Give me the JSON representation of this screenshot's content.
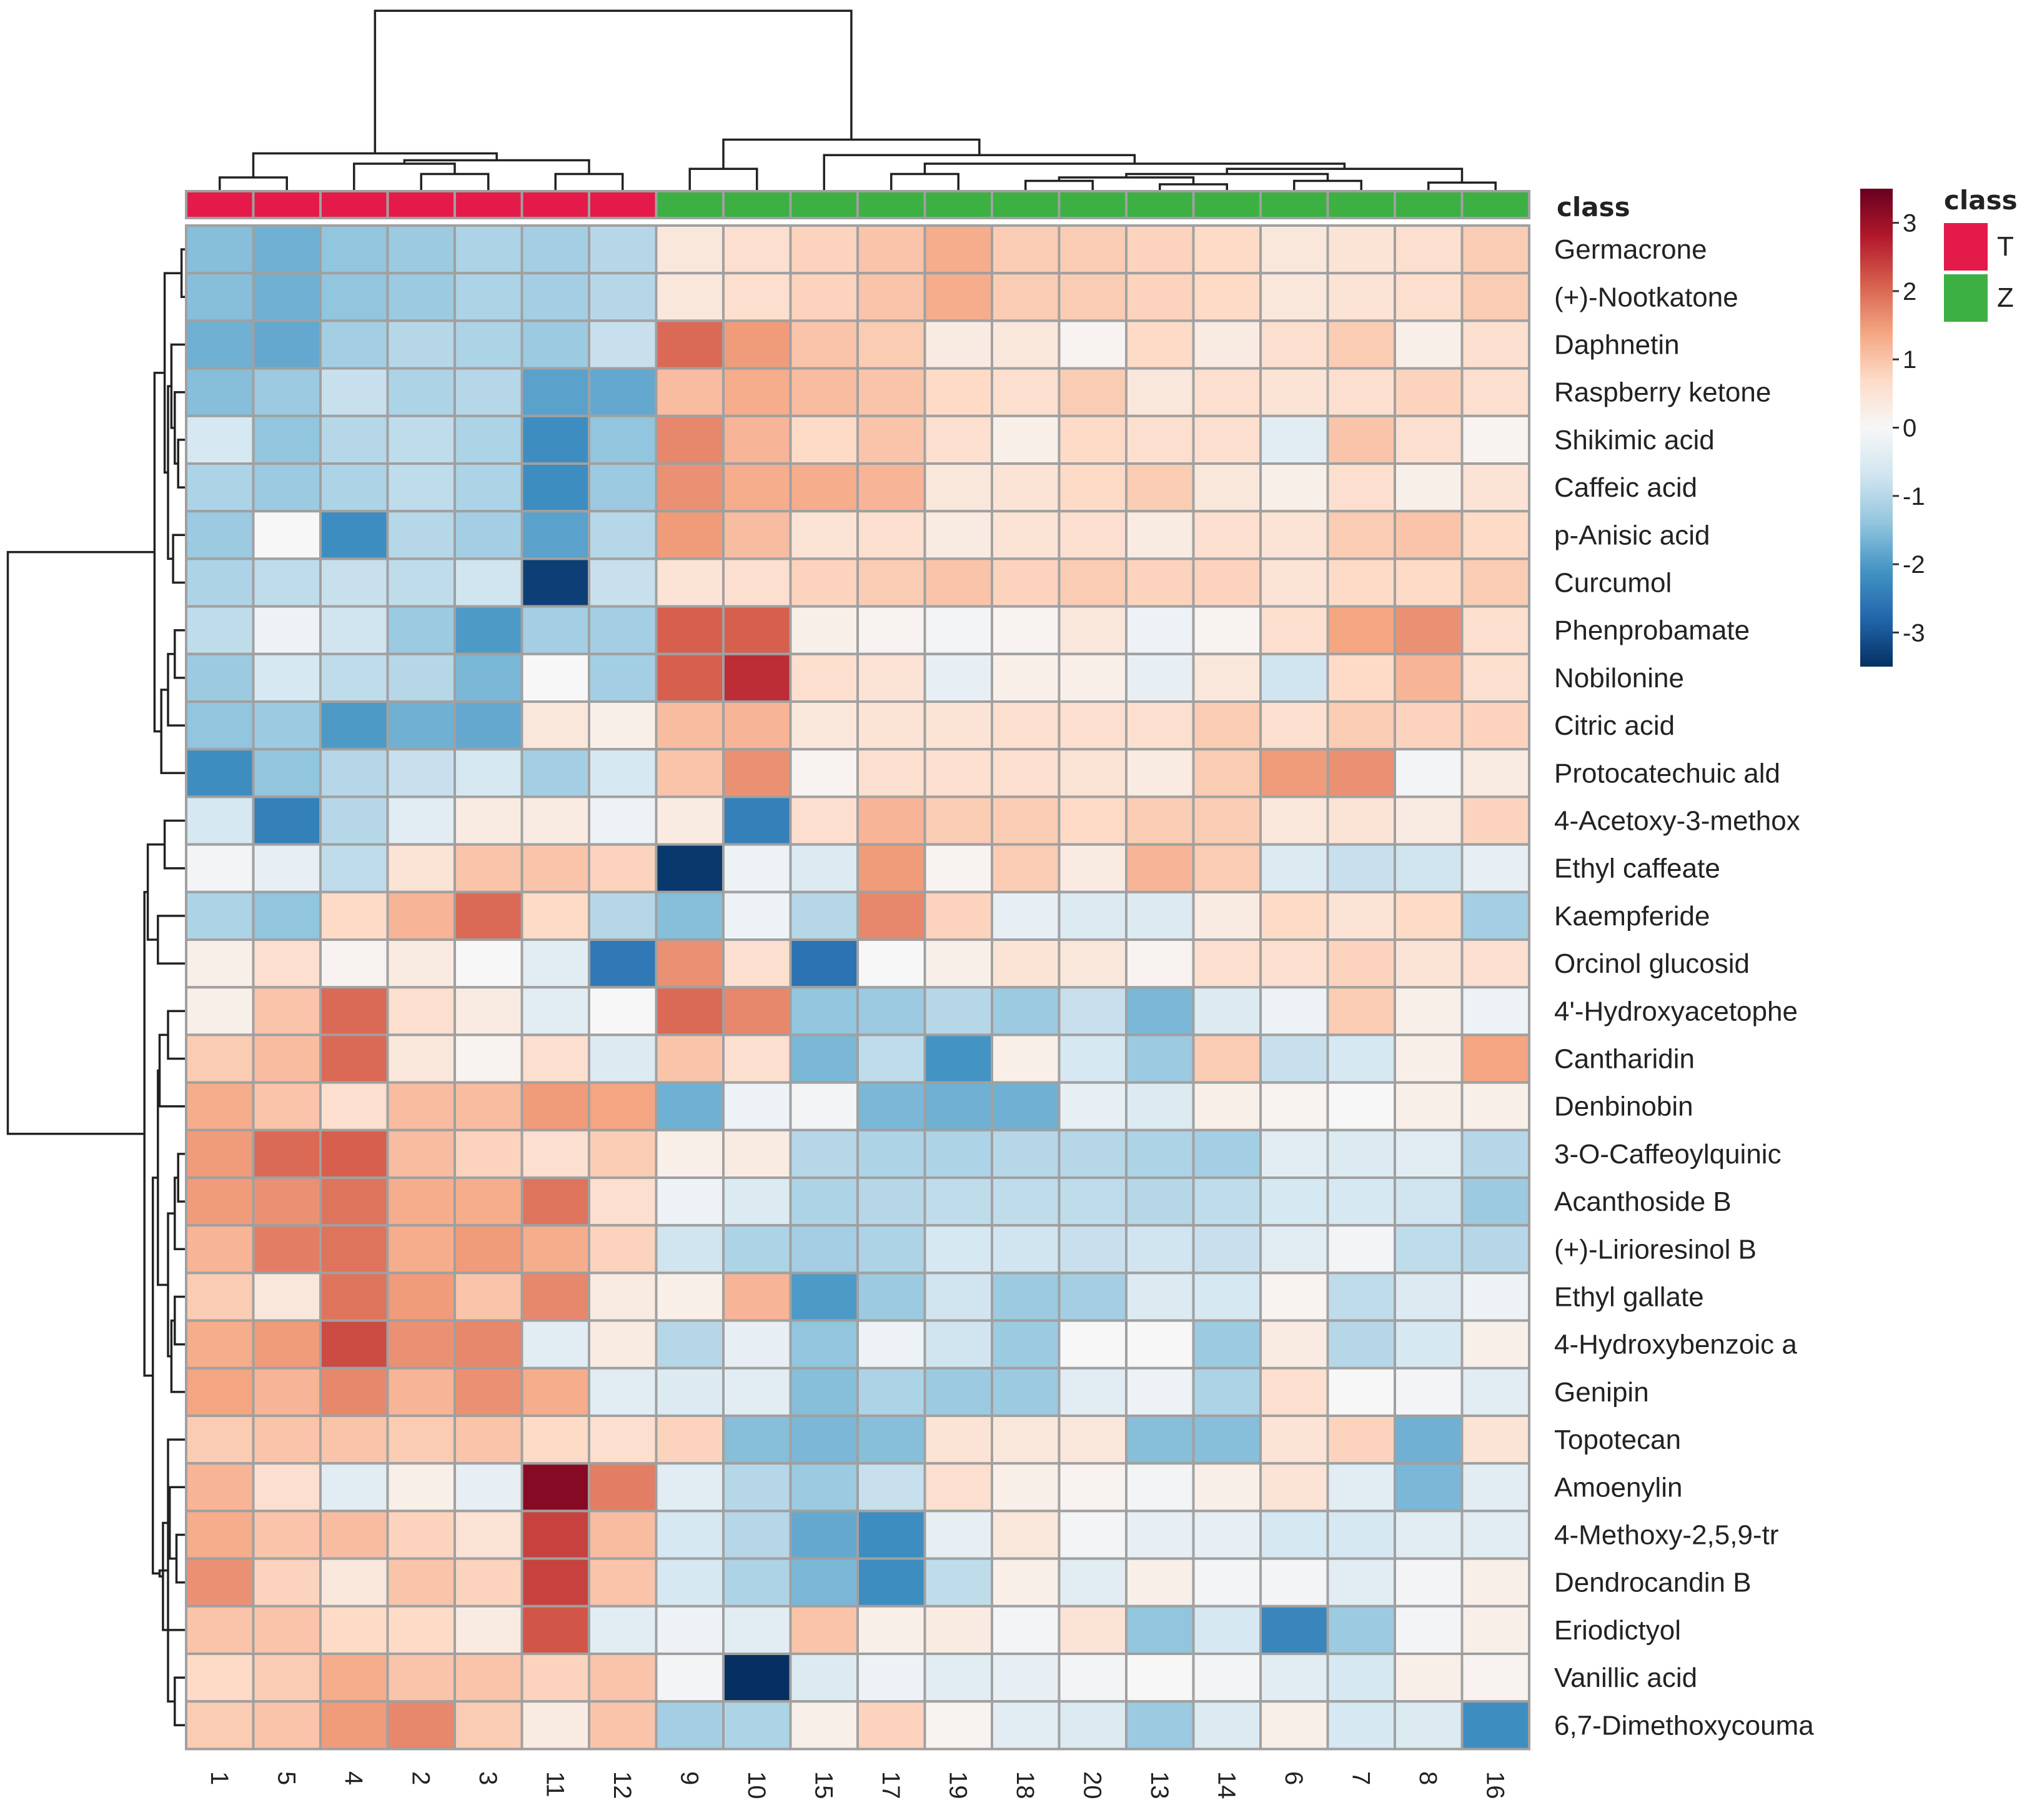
{
  "chart_data": {
    "type": "heatmap",
    "title": "",
    "color_scale": {
      "min": -3.5,
      "max": 3.5,
      "stops": [
        "#053061",
        "#2166ac",
        "#4393c3",
        "#92c5de",
        "#d1e5f0",
        "#f7f7f7",
        "#fddbc7",
        "#f4a582",
        "#d6604d",
        "#b2182b",
        "#67001f"
      ],
      "ticks": [
        "3",
        "2",
        "1",
        "0",
        "-1",
        "-2",
        "-3"
      ]
    },
    "annotation": {
      "title": "class",
      "legend": [
        {
          "label": "T",
          "color": "#e41a4a"
        },
        {
          "label": "Z",
          "color": "#3cb043"
        }
      ]
    },
    "samples": [
      "1",
      "5",
      "4",
      "2",
      "3",
      "11",
      "12",
      "9",
      "10",
      "15",
      "17",
      "19",
      "18",
      "20",
      "13",
      "14",
      "6",
      "7",
      "8",
      "16"
    ],
    "sample_class": [
      "T",
      "T",
      "T",
      "T",
      "T",
      "T",
      "T",
      "Z",
      "Z",
      "Z",
      "Z",
      "Z",
      "Z",
      "Z",
      "Z",
      "Z",
      "Z",
      "Z",
      "Z",
      "Z"
    ],
    "rows": [
      "Germacrone",
      "(+)-Nootkatone",
      "Daphnetin",
      "Raspberry ketone",
      "Shikimic acid",
      "Caffeic acid",
      "p-Anisic acid",
      "Curcumol",
      "Phenprobamate",
      "Nobilonine",
      "Citric acid",
      "Protocatechuic ald",
      "4-Acetoxy-3-methox",
      "Ethyl caffeate",
      "Kaempferide",
      "Orcinol glucosid",
      "4'-Hydroxyacetophe",
      "Cantharidin",
      "Denbinobin",
      "3-O-Caffeoylquinic",
      "Acanthoside B",
      "(+)-Lirioresinol B",
      "Ethyl gallate",
      "4-Hydroxybenzoic a",
      "Genipin",
      "Topotecan",
      "Amoenylin",
      "4-Methoxy-2,5,9-tr",
      "Dendrocandin B",
      "Eriodictyol",
      "Vanillic acid",
      "6,7-Dimethoxycouma"
    ],
    "values": [
      [
        -1.5,
        -1.7,
        -1.4,
        -1.3,
        -1.1,
        -1.2,
        -1.0,
        0.4,
        0.6,
        0.8,
        1.0,
        1.3,
        0.9,
        0.9,
        0.8,
        0.7,
        0.4,
        0.5,
        0.6,
        0.9
      ],
      [
        -1.5,
        -1.7,
        -1.4,
        -1.3,
        -1.1,
        -1.2,
        -1.0,
        0.4,
        0.6,
        0.8,
        1.0,
        1.3,
        0.9,
        0.9,
        0.8,
        0.7,
        0.4,
        0.5,
        0.6,
        0.9
      ],
      [
        -1.7,
        -1.8,
        -1.2,
        -1.0,
        -1.1,
        -1.3,
        -0.8,
        2.0,
        1.5,
        1.0,
        0.9,
        0.3,
        0.4,
        0.1,
        0.7,
        0.3,
        0.6,
        0.9,
        0.2,
        0.6
      ],
      [
        -1.5,
        -1.3,
        -0.8,
        -1.1,
        -1.0,
        -1.9,
        -1.8,
        1.1,
        1.3,
        1.1,
        1.0,
        0.7,
        0.6,
        0.9,
        0.4,
        0.6,
        0.5,
        0.6,
        0.8,
        0.6
      ],
      [
        -0.6,
        -1.4,
        -1.0,
        -0.9,
        -1.1,
        -2.2,
        -1.4,
        1.7,
        1.2,
        0.7,
        1.0,
        0.6,
        0.2,
        0.7,
        0.6,
        0.6,
        -0.4,
        1.0,
        0.6,
        0.1
      ],
      [
        -1.1,
        -1.3,
        -1.1,
        -0.9,
        -1.1,
        -2.2,
        -1.3,
        1.6,
        1.3,
        1.3,
        1.2,
        0.4,
        0.5,
        0.7,
        0.9,
        0.4,
        0.2,
        0.6,
        0.2,
        0.5
      ],
      [
        -1.3,
        0.0,
        -2.2,
        -1.0,
        -1.2,
        -1.9,
        -1.0,
        1.5,
        1.1,
        0.5,
        0.6,
        0.3,
        0.5,
        0.6,
        0.3,
        0.6,
        0.5,
        0.9,
        1.0,
        0.7
      ],
      [
        -1.1,
        -0.9,
        -0.8,
        -0.9,
        -0.7,
        -3.3,
        -0.8,
        0.5,
        0.6,
        0.8,
        0.9,
        1.0,
        0.8,
        0.9,
        0.8,
        0.8,
        0.5,
        0.7,
        0.7,
        0.9
      ],
      [
        -0.9,
        -0.2,
        -0.7,
        -1.3,
        -2.0,
        -1.2,
        -1.2,
        2.1,
        2.1,
        0.2,
        0.1,
        -0.1,
        0.1,
        0.4,
        -0.2,
        0.1,
        0.6,
        1.4,
        1.6,
        0.6
      ],
      [
        -1.3,
        -0.6,
        -0.9,
        -1.0,
        -1.6,
        0.0,
        -1.2,
        2.1,
        2.6,
        0.6,
        0.5,
        -0.3,
        0.2,
        0.2,
        -0.3,
        0.4,
        -0.7,
        0.7,
        1.2,
        0.6
      ],
      [
        -1.4,
        -1.3,
        -2.0,
        -1.7,
        -1.8,
        0.4,
        0.2,
        1.1,
        1.2,
        0.4,
        0.5,
        0.5,
        0.6,
        0.6,
        0.6,
        0.9,
        0.6,
        0.9,
        0.8,
        0.8
      ],
      [
        -2.2,
        -1.4,
        -1.0,
        -0.8,
        -0.6,
        -1.2,
        -0.6,
        1.0,
        1.6,
        0.1,
        0.6,
        0.6,
        0.6,
        0.5,
        0.3,
        0.9,
        1.5,
        1.6,
        -0.1,
        0.3
      ],
      [
        -0.6,
        -2.4,
        -1.0,
        -0.4,
        0.3,
        0.3,
        -0.2,
        0.3,
        -2.4,
        0.6,
        1.2,
        0.9,
        0.9,
        0.7,
        0.9,
        0.9,
        0.4,
        0.5,
        0.3,
        0.8
      ],
      [
        -0.1,
        -0.3,
        -0.9,
        0.5,
        1.0,
        1.0,
        0.8,
        -3.4,
        -0.2,
        -0.5,
        1.5,
        0.1,
        0.9,
        0.3,
        1.2,
        0.9,
        -0.5,
        -0.8,
        -0.7,
        -0.3
      ],
      [
        -1.1,
        -1.4,
        0.7,
        1.2,
        2.0,
        0.7,
        -1.0,
        -1.5,
        -0.2,
        -1.0,
        1.7,
        0.8,
        -0.3,
        -0.5,
        -0.5,
        0.3,
        0.7,
        0.5,
        0.7,
        -1.2
      ],
      [
        0.2,
        0.6,
        0.1,
        0.3,
        0.0,
        -0.4,
        -2.5,
        1.6,
        0.6,
        -2.6,
        0.0,
        0.2,
        0.5,
        0.4,
        0.1,
        0.6,
        0.6,
        0.8,
        0.5,
        0.6
      ],
      [
        0.2,
        1.0,
        2.0,
        0.6,
        0.3,
        -0.4,
        0.0,
        2.0,
        1.7,
        -1.4,
        -1.3,
        -1.0,
        -1.3,
        -0.8,
        -1.6,
        -0.5,
        -0.2,
        0.9,
        0.2,
        -0.2
      ],
      [
        0.9,
        1.1,
        2.0,
        0.4,
        0.1,
        0.6,
        -0.5,
        1.0,
        0.6,
        -1.6,
        -0.9,
        -2.1,
        0.2,
        -0.6,
        -1.3,
        0.9,
        -0.8,
        -0.6,
        0.2,
        1.4
      ],
      [
        1.3,
        1.0,
        0.6,
        1.1,
        1.1,
        1.5,
        1.4,
        -1.7,
        -0.2,
        -0.1,
        -1.6,
        -1.7,
        -1.7,
        -0.3,
        -0.5,
        0.2,
        0.1,
        0.0,
        0.2,
        0.2
      ],
      [
        1.5,
        2.0,
        2.1,
        1.1,
        0.8,
        0.6,
        0.9,
        0.2,
        0.3,
        -1.0,
        -1.1,
        -1.1,
        -1.0,
        -1.0,
        -1.1,
        -1.2,
        -0.4,
        -0.5,
        -0.4,
        -1.0
      ],
      [
        1.5,
        1.6,
        1.9,
        1.3,
        1.3,
        1.9,
        0.6,
        -0.2,
        -0.5,
        -1.1,
        -1.0,
        -0.9,
        -0.9,
        -0.9,
        -1.0,
        -0.9,
        -0.6,
        -0.6,
        -0.7,
        -1.3
      ],
      [
        1.2,
        1.8,
        1.9,
        1.3,
        1.5,
        1.3,
        0.8,
        -0.7,
        -1.1,
        -1.2,
        -1.1,
        -0.6,
        -0.7,
        -0.8,
        -0.7,
        -0.8,
        -0.4,
        -0.1,
        -0.9,
        -1.0
      ],
      [
        0.9,
        0.4,
        1.9,
        1.5,
        1.0,
        1.7,
        0.3,
        0.2,
        1.2,
        -2.0,
        -1.3,
        -0.7,
        -1.3,
        -1.2,
        -0.5,
        -0.6,
        0.1,
        -0.9,
        -0.5,
        -0.2
      ],
      [
        1.3,
        1.5,
        2.3,
        1.6,
        1.7,
        -0.4,
        0.3,
        -1.0,
        -0.3,
        -1.4,
        -0.2,
        -0.7,
        -1.3,
        0.0,
        0.0,
        -1.3,
        0.3,
        -1.0,
        -0.6,
        0.2
      ],
      [
        1.4,
        1.2,
        1.7,
        1.2,
        1.6,
        1.3,
        -0.4,
        -0.5,
        -0.4,
        -1.5,
        -1.1,
        -1.3,
        -1.3,
        -0.4,
        -0.2,
        -1.1,
        0.6,
        0.0,
        -0.1,
        -0.4
      ],
      [
        0.9,
        1.0,
        1.0,
        0.9,
        1.0,
        0.7,
        0.6,
        0.8,
        -1.5,
        -1.6,
        -1.5,
        0.5,
        0.4,
        0.4,
        -1.5,
        -1.5,
        0.5,
        0.8,
        -1.7,
        0.5
      ],
      [
        1.2,
        0.6,
        -0.4,
        0.2,
        -0.3,
        3.2,
        1.8,
        -0.4,
        -1.0,
        -1.3,
        -0.8,
        0.6,
        0.2,
        0.1,
        -0.1,
        0.2,
        0.5,
        -0.4,
        -1.6,
        -0.4
      ],
      [
        1.3,
        1.0,
        1.1,
        0.8,
        0.5,
        2.4,
        1.1,
        -0.6,
        -1.0,
        -1.8,
        -2.2,
        -0.3,
        0.4,
        -0.1,
        -0.3,
        -0.3,
        -0.6,
        -0.6,
        -0.4,
        -0.4
      ],
      [
        1.6,
        0.8,
        0.4,
        1.0,
        0.8,
        2.4,
        1.0,
        -0.6,
        -1.1,
        -1.6,
        -2.2,
        -0.9,
        0.2,
        -0.4,
        0.2,
        -0.1,
        -0.1,
        -0.4,
        -0.1,
        0.2
      ],
      [
        1.0,
        1.0,
        0.7,
        0.7,
        0.3,
        2.2,
        -0.4,
        -0.2,
        -0.4,
        1.0,
        0.2,
        0.3,
        -0.1,
        0.5,
        -1.4,
        -0.6,
        -2.3,
        -1.3,
        -0.1,
        0.2
      ],
      [
        0.7,
        0.9,
        1.3,
        1.0,
        1.0,
        0.8,
        1.0,
        -0.1,
        -3.5,
        -0.5,
        -0.2,
        -0.4,
        -0.3,
        -0.1,
        0.0,
        -0.1,
        -0.4,
        -0.6,
        0.2,
        0.1
      ],
      [
        0.9,
        1.0,
        1.5,
        1.7,
        0.9,
        0.3,
        1.0,
        -1.2,
        -1.1,
        0.2,
        0.8,
        0.1,
        -0.4,
        -0.5,
        -1.3,
        -0.5,
        0.2,
        -0.6,
        -0.5,
        -2.2
      ]
    ]
  }
}
